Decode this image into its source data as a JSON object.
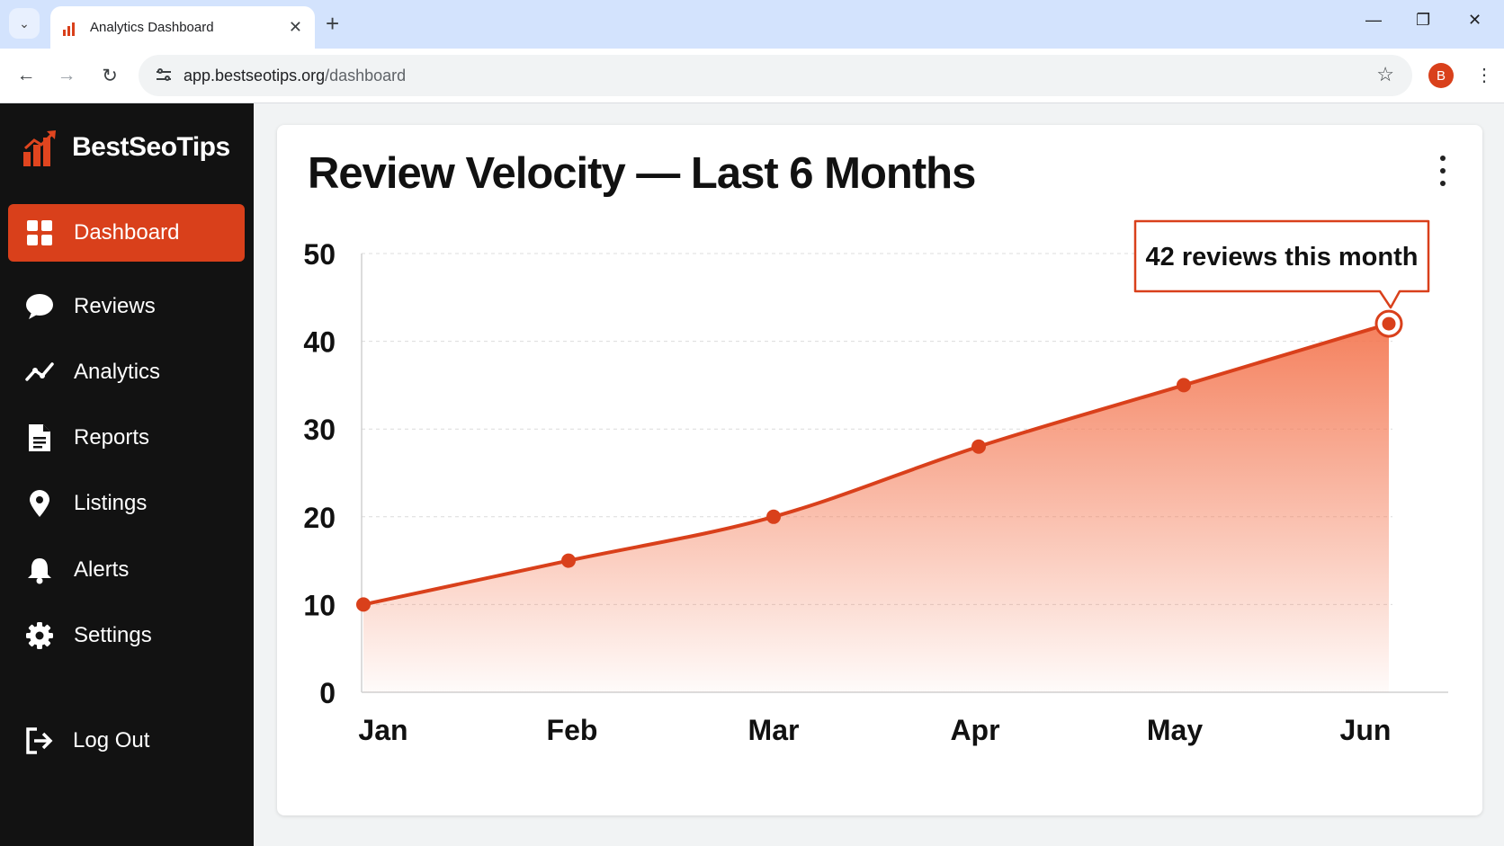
{
  "browser": {
    "tab_title": "Analytics Dashboard",
    "url_host": "app.bestseotips.org",
    "url_path": "/dashboard",
    "profile_initial": "B"
  },
  "sidebar": {
    "brand": "BestSeoTips",
    "items": [
      {
        "label": "Dashboard",
        "icon": "dashboard-grid-icon",
        "active": true
      },
      {
        "label": "Reviews",
        "icon": "chat-bubble-icon",
        "active": false
      },
      {
        "label": "Analytics",
        "icon": "trend-line-icon",
        "active": false
      },
      {
        "label": "Reports",
        "icon": "document-icon",
        "active": false
      },
      {
        "label": "Listings",
        "icon": "map-pin-icon",
        "active": false
      },
      {
        "label": "Alerts",
        "icon": "bell-icon",
        "active": false
      },
      {
        "label": "Settings",
        "icon": "gear-icon",
        "active": false
      }
    ],
    "logout_label": "Log Out"
  },
  "main": {
    "title": "Review Velocity — Last 6 Months"
  },
  "colors": {
    "accent": "#d9401b",
    "sidebar_bg": "#121212",
    "fill": "#f47a55"
  },
  "chart_data": {
    "type": "area",
    "title": "Review Velocity — Last 6 Months",
    "categories": [
      "Jan",
      "Feb",
      "Mar",
      "Apr",
      "May",
      "Jun"
    ],
    "values": [
      10,
      15,
      20,
      28,
      35,
      42
    ],
    "ylim": [
      0,
      50
    ],
    "yticks": [
      "0",
      "10",
      "20",
      "30",
      "40",
      "50"
    ],
    "grid": true,
    "annotation": {
      "text": "42 reviews this month",
      "category": "Jun",
      "value": 42
    }
  }
}
